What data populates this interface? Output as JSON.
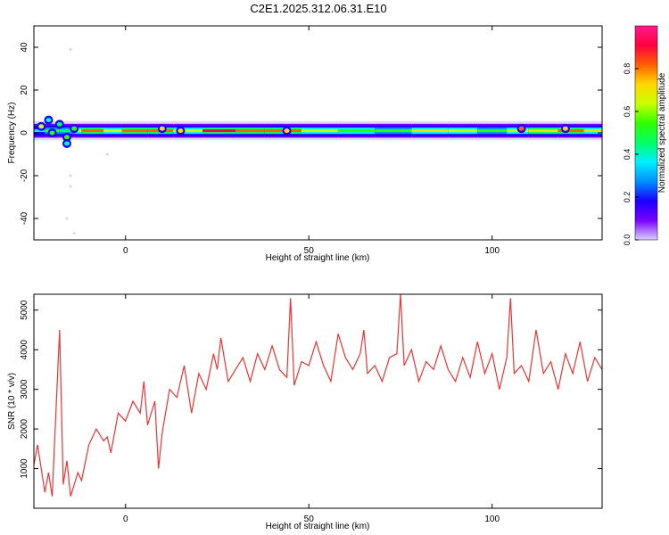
{
  "title": "C2E1.2025.312.06.31.E10",
  "colors": {
    "snr_line": "#ee3333",
    "axis": "#000000"
  },
  "chart_data": [
    {
      "type": "heatmap",
      "xlabel": "Height of straight line (km)",
      "ylabel": "Frequency (Hz)",
      "xlim": [
        -25,
        130
      ],
      "ylim": [
        -50,
        50
      ],
      "xticks": [
        0,
        50,
        100
      ],
      "yticks": [
        -40,
        -20,
        0,
        20,
        40
      ],
      "colorbar": {
        "label": "Normalized spectral amplitude",
        "range": [
          0,
          1
        ],
        "ticks": [
          "0.0",
          "0.2",
          "0.4",
          "0.6",
          "0.8"
        ],
        "colormap": [
          "#d9d0ff",
          "#7a00ff",
          "#1800ff",
          "#0090ff",
          "#00f0ff",
          "#00ff66",
          "#30ff00",
          "#c8ff00",
          "#ffd800",
          "#ff6000",
          "#ff0040",
          "#ff1a8c"
        ]
      },
      "band": {
        "center_hz": 1,
        "half_width_hz": 2.5,
        "segments": [
          {
            "x": [
              -25,
              -22
            ],
            "amp": 0.35
          },
          {
            "x": [
              -22,
              -18
            ],
            "amp": 0.5
          },
          {
            "x": [
              -18,
              -14
            ],
            "amp": 0.45
          },
          {
            "x": [
              -14,
              -12
            ],
            "amp": 0.6
          },
          {
            "x": [
              -12,
              -6
            ],
            "amp": 0.8
          },
          {
            "x": [
              -6,
              -1
            ],
            "amp": 0.6
          },
          {
            "x": [
              -1,
              6
            ],
            "amp": 0.85
          },
          {
            "x": [
              6,
              13
            ],
            "amp": 0.8
          },
          {
            "x": [
              13,
              21
            ],
            "amp": 0.65
          },
          {
            "x": [
              21,
              30
            ],
            "amp": 0.9
          },
          {
            "x": [
              30,
              38
            ],
            "amp": 0.82
          },
          {
            "x": [
              38,
              48
            ],
            "amp": 0.78
          },
          {
            "x": [
              48,
              58
            ],
            "amp": 0.62
          },
          {
            "x": [
              58,
              68
            ],
            "amp": 0.58
          },
          {
            "x": [
              68,
              78
            ],
            "amp": 0.55
          },
          {
            "x": [
              78,
              88
            ],
            "amp": 0.7
          },
          {
            "x": [
              88,
              96
            ],
            "amp": 0.6
          },
          {
            "x": [
              96,
              104
            ],
            "amp": 0.55
          },
          {
            "x": [
              104,
              110
            ],
            "amp": 0.62
          },
          {
            "x": [
              110,
              118
            ],
            "amp": 0.75
          },
          {
            "x": [
              118,
              125
            ],
            "amp": 0.82
          },
          {
            "x": [
              125,
              130
            ],
            "amp": 0.7
          }
        ],
        "blobs": [
          {
            "x": -23,
            "y": 3,
            "amp": 0.6
          },
          {
            "x": -21,
            "y": 6,
            "amp": 0.4
          },
          {
            "x": -20,
            "y": 0,
            "amp": 0.5
          },
          {
            "x": -18,
            "y": 4,
            "amp": 0.45
          },
          {
            "x": -16,
            "y": -2,
            "amp": 0.5
          },
          {
            "x": -16,
            "y": -5,
            "amp": 0.4
          },
          {
            "x": -14,
            "y": 2,
            "amp": 0.55
          },
          {
            "x": 10,
            "y": 2,
            "amp": 0.7
          },
          {
            "x": 15,
            "y": 1,
            "amp": 0.7
          },
          {
            "x": 44,
            "y": 1,
            "amp": 0.75
          },
          {
            "x": 108,
            "y": 2,
            "amp": 0.8
          },
          {
            "x": 120,
            "y": 2,
            "amp": 0.75
          }
        ],
        "sparse_points": [
          {
            "x": -15,
            "y": 39
          },
          {
            "x": -15,
            "y": -20
          },
          {
            "x": -15,
            "y": -25
          },
          {
            "x": -16,
            "y": -40
          },
          {
            "x": -14,
            "y": -47
          },
          {
            "x": -5,
            "y": -10
          }
        ]
      }
    },
    {
      "type": "line",
      "xlabel": "Height of straight line (km)",
      "ylabel": "SNR (10 * v/v)",
      "xlim": [
        -25,
        130
      ],
      "ylim": [
        0,
        5400
      ],
      "xticks": [
        0,
        50,
        100
      ],
      "yticks": [
        1000,
        2000,
        3000,
        4000,
        5000
      ],
      "series": [
        {
          "x": [
            -25,
            -24,
            -22,
            -21,
            -20,
            -18,
            -17,
            -16,
            -15,
            -13,
            -12,
            -10,
            -8,
            -6,
            -5,
            -4,
            -2,
            0,
            2,
            4,
            5,
            6,
            8,
            9,
            10,
            12,
            14,
            16,
            18,
            20,
            22,
            24,
            25,
            26,
            28,
            30,
            32,
            34,
            36,
            38,
            40,
            42,
            44,
            45,
            46,
            48,
            50,
            52,
            54,
            56,
            58,
            60,
            62,
            64,
            65,
            66,
            68,
            70,
            72,
            74,
            75,
            76,
            78,
            80,
            82,
            84,
            86,
            88,
            90,
            92,
            94,
            96,
            98,
            100,
            102,
            104,
            105,
            106,
            108,
            110,
            112,
            114,
            116,
            118,
            120,
            122,
            124,
            126,
            128,
            130
          ],
          "values": [
            1100,
            1600,
            400,
            900,
            300,
            4500,
            600,
            1200,
            300,
            900,
            700,
            1600,
            2000,
            1700,
            1800,
            1400,
            2400,
            2200,
            2700,
            2400,
            3200,
            2100,
            2700,
            1000,
            1900,
            3000,
            2800,
            3600,
            2400,
            3400,
            3000,
            3900,
            3500,
            4300,
            3200,
            3500,
            3800,
            3200,
            3900,
            3500,
            4100,
            3500,
            3300,
            5300,
            3100,
            3700,
            3600,
            4200,
            3600,
            3200,
            4400,
            3800,
            3500,
            3900,
            4500,
            3400,
            3600,
            3200,
            3800,
            3900,
            5400,
            3600,
            4000,
            3200,
            3700,
            3500,
            4100,
            3500,
            3200,
            3800,
            3300,
            4200,
            3400,
            3900,
            3000,
            3800,
            5300,
            3400,
            3600,
            3200,
            4500,
            3400,
            3700,
            3000,
            3900,
            3400,
            4200,
            3200,
            3800,
            3500
          ]
        }
      ]
    }
  ]
}
